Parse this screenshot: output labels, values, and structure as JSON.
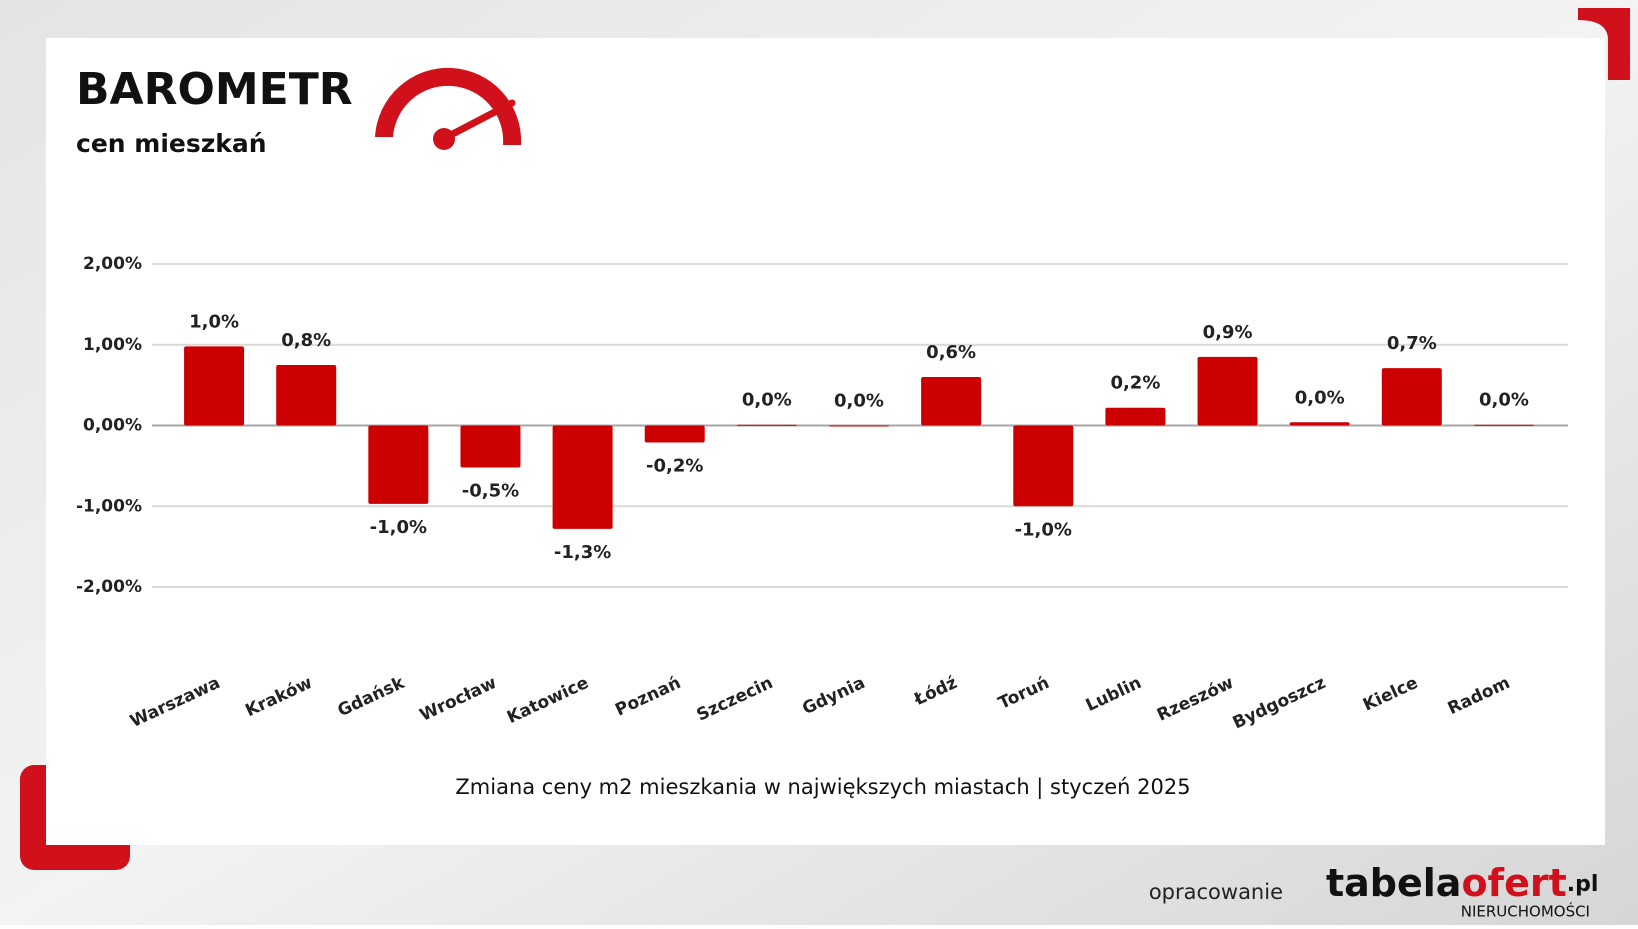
{
  "header": {
    "title": "BAROMETR",
    "subtitle": "cen mieszkań"
  },
  "chart_data": {
    "type": "bar",
    "subtitle": "Zmiana ceny m2 mieszkania w największych miastach | styczeń 2025",
    "categories": [
      "Warszawa",
      "Kraków",
      "Gdańsk",
      "Wrocław",
      "Katowice",
      "Poznań",
      "Szczecin",
      "Gdynia",
      "Łódź",
      "Toruń",
      "Lublin",
      "Rzeszów",
      "Bydgoszcz",
      "Kielce",
      "Radom"
    ],
    "values": [
      0.98,
      0.75,
      -0.97,
      -0.52,
      -1.28,
      -0.21,
      0.01,
      0,
      0.6,
      -1.0,
      0.22,
      0.85,
      0.04,
      0.71,
      0.01
    ],
    "value_labels": [
      "1,0%",
      "0,8%",
      "-1,0%",
      "-0,5%",
      "-1,3%",
      "-0,2%",
      "0,0%",
      "0,0%",
      "0,6%",
      "-1,0%",
      "0,2%",
      "0,9%",
      "0,0%",
      "0,7%",
      "0,0%"
    ],
    "color": "#cc0000",
    "ylim": [
      -2,
      2
    ],
    "yticks": [
      {
        "value": -2,
        "label": "-2,00%"
      },
      {
        "value": -1,
        "label": "-1,00%"
      },
      {
        "value": 0,
        "label": "0,00%"
      },
      {
        "value": 1,
        "label": "1,00%"
      },
      {
        "value": 2,
        "label": "2,00%"
      }
    ],
    "grid": true
  },
  "footer": {
    "credit": "opracowanie",
    "logo_part1": "tabela",
    "logo_part2": "ofert",
    "logo_suffix": ".pl",
    "logo_tagline": "NIERUCHOMOŚCI"
  }
}
